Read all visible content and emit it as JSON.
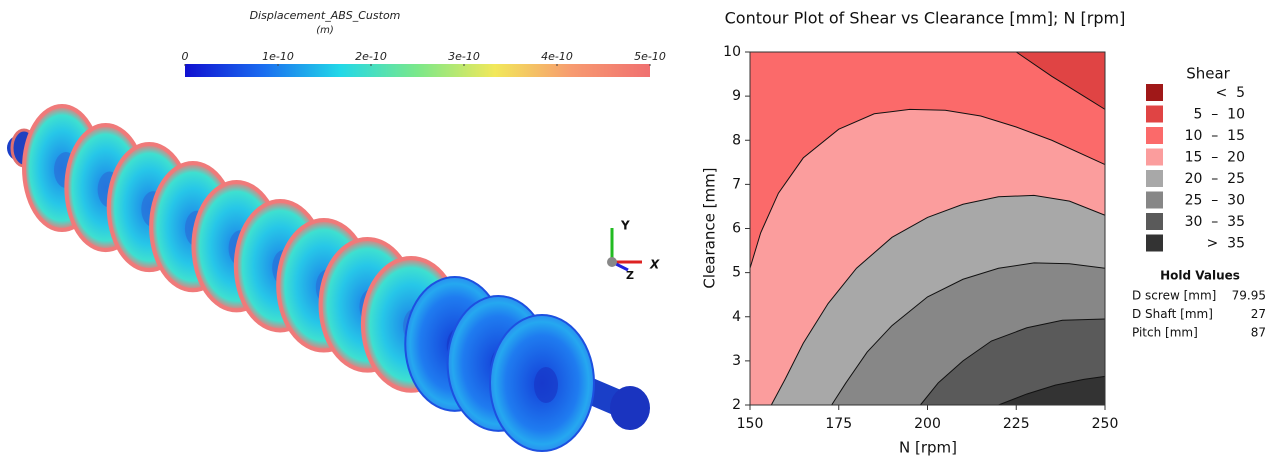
{
  "render_panel": {
    "colorbar": {
      "title": "Displacement_ABS_Custom",
      "unit": "(m)",
      "lim": [
        0,
        5e-10
      ],
      "ticks": [
        0,
        {
          "value": 1e-10,
          "label": "1e-10"
        },
        {
          "value": 2e-10,
          "label": "2e-10"
        },
        {
          "value": 3e-10,
          "label": "3e-10"
        },
        {
          "value": 4e-10,
          "label": "4e-10"
        },
        {
          "value": 5e-10,
          "label": "5e-10"
        }
      ],
      "colors": [
        "#1010d0",
        "#1a6cf0",
        "#22d8e8",
        "#7be88a",
        "#f2e85a",
        "#f79a70",
        "#f07070"
      ]
    },
    "axis_labels": [
      "Y",
      "X",
      "Z"
    ]
  },
  "chart_data": {
    "type": "contour",
    "title": "Contour Plot of Shear vs Clearance [mm]; N [rpm]",
    "x_label": "N [rpm]",
    "y_label": "Clearance [mm]",
    "xlim": [
      150,
      250
    ],
    "xticks": [
      150,
      175,
      200,
      225,
      250
    ],
    "ylim": [
      2,
      10
    ],
    "yticks": [
      2,
      3,
      4,
      5,
      6,
      7,
      8,
      9,
      10
    ],
    "base_color": "#e04444",
    "contours": [
      {
        "level": 10,
        "color": "#fb6a6a",
        "x": [
          225,
          235,
          245,
          250
        ],
        "y": [
          10,
          9.45,
          8.95,
          8.7
        ]
      },
      {
        "level": 15,
        "color": "#fb9d9d",
        "x": [
          150,
          153,
          158,
          165,
          175,
          185,
          195,
          205,
          215,
          225,
          235,
          250
        ],
        "y": [
          5.1,
          5.9,
          6.8,
          7.6,
          8.25,
          8.6,
          8.7,
          8.68,
          8.55,
          8.3,
          8.0,
          7.45
        ]
      },
      {
        "level": 20,
        "color": "#a8a8a8",
        "x": [
          156,
          160,
          165,
          172,
          180,
          190,
          200,
          210,
          220,
          230,
          240,
          250
        ],
        "y": [
          2,
          2.6,
          3.4,
          4.3,
          5.1,
          5.8,
          6.25,
          6.55,
          6.72,
          6.75,
          6.62,
          6.3
        ]
      },
      {
        "level": 25,
        "color": "#878787",
        "x": [
          173,
          177,
          183,
          190,
          200,
          210,
          220,
          230,
          240,
          250
        ],
        "y": [
          2,
          2.5,
          3.2,
          3.8,
          4.45,
          4.85,
          5.1,
          5.22,
          5.2,
          5.1
        ]
      },
      {
        "level": 30,
        "color": "#5a5a5a",
        "x": [
          198,
          203,
          210,
          218,
          228,
          238,
          250
        ],
        "y": [
          2,
          2.5,
          3.0,
          3.45,
          3.75,
          3.92,
          3.95
        ]
      },
      {
        "level": 35,
        "color": "#333333",
        "x": [
          220,
          228,
          236,
          244,
          250
        ],
        "y": [
          2,
          2.25,
          2.45,
          2.58,
          2.65
        ]
      }
    ],
    "legend": {
      "title": "Shear",
      "items": [
        {
          "label": "<  5",
          "color": "#a01818"
        },
        {
          "label": "5  –  10",
          "color": "#e04444"
        },
        {
          "label": "10  –  15",
          "color": "#fb6a6a"
        },
        {
          "label": "15  –  20",
          "color": "#fb9d9d"
        },
        {
          "label": "20  –  25",
          "color": "#a8a8a8"
        },
        {
          "label": "25  –  30",
          "color": "#878787"
        },
        {
          "label": "30  –  35",
          "color": "#5a5a5a"
        },
        {
          "label": ">  35",
          "color": "#333333"
        }
      ]
    },
    "hold_values": {
      "title": "Hold Values",
      "rows": [
        [
          "D screw [mm]",
          79.95
        ],
        [
          "D Shaft [mm]",
          27
        ],
        [
          "Pitch [mm]",
          87
        ]
      ]
    }
  }
}
